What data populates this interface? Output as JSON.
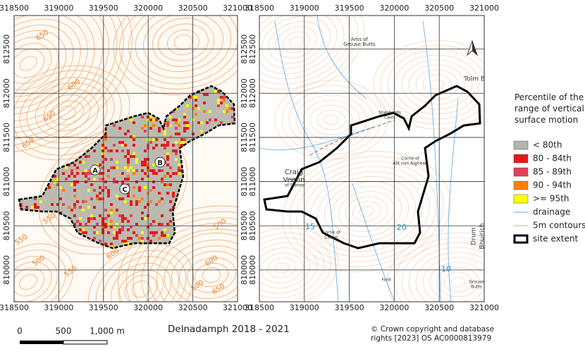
{
  "map_frames": [
    {
      "xlim": [
        318500,
        321000
      ],
      "ylim": [
        809640,
        812880
      ],
      "xticks": [
        318500,
        319000,
        319500,
        320000,
        320500,
        321000
      ],
      "yticks": [
        810000,
        810500,
        811000,
        811500,
        812000,
        812500
      ],
      "contour_labels": [
        "650",
        "600",
        "650",
        "650",
        "550",
        "550",
        "500",
        "550",
        "600",
        "500",
        "600",
        "650",
        "500"
      ],
      "points": [
        "A",
        "B",
        "C"
      ]
    },
    {
      "xlim": [
        318500,
        321000
      ],
      "ylim": [
        809640,
        812880
      ],
      "xticks": [
        318500,
        319000,
        319500,
        320000,
        320500,
        321000
      ],
      "yticks": [
        810000,
        810500,
        811000,
        811500,
        812000,
        812500
      ],
      "place_labels": [
        "Ams of",
        "Grouse Butts",
        "Tolm B",
        "Shepherds",
        "Cairn",
        "Pile",
        "of Stones",
        "Craig",
        "Veann",
        "Corrie of",
        "Allt nan Aighean",
        "Corrie of",
        "Ceann",
        "Drum",
        "Bhuirich",
        "Grouse",
        "Butts",
        "Ford",
        "20",
        "21",
        "10",
        "15"
      ]
    }
  ],
  "legend": {
    "title": "Percentile of the range of vertical surface motion",
    "items": [
      {
        "label": "< 80th",
        "color": "#b4b4aa",
        "symbol": "box"
      },
      {
        "label": "80 - 84th",
        "color": "#e31a1c",
        "symbol": "box"
      },
      {
        "label": "85 - 89th",
        "color": "#e0405a",
        "symbol": "box"
      },
      {
        "label": "90 - 94th",
        "color": "#ff8000",
        "symbol": "box"
      },
      {
        "label": ">= 95th",
        "color": "#ffff00",
        "symbol": "box"
      },
      {
        "label": "drainage",
        "color": "#5aa8e0",
        "symbol": "line"
      },
      {
        "label": "5m contours",
        "color": "#f0a060",
        "symbol": "line"
      },
      {
        "label": "site extent",
        "color": "#000000",
        "symbol": "outline"
      }
    ]
  },
  "scale_bar": {
    "labels": [
      "0",
      "500",
      "1,000 m"
    ]
  },
  "title": "Delnadamph 2018 - 2021",
  "copyright": "© Crown copyright and database rights [2023] OS AC0000813979"
}
